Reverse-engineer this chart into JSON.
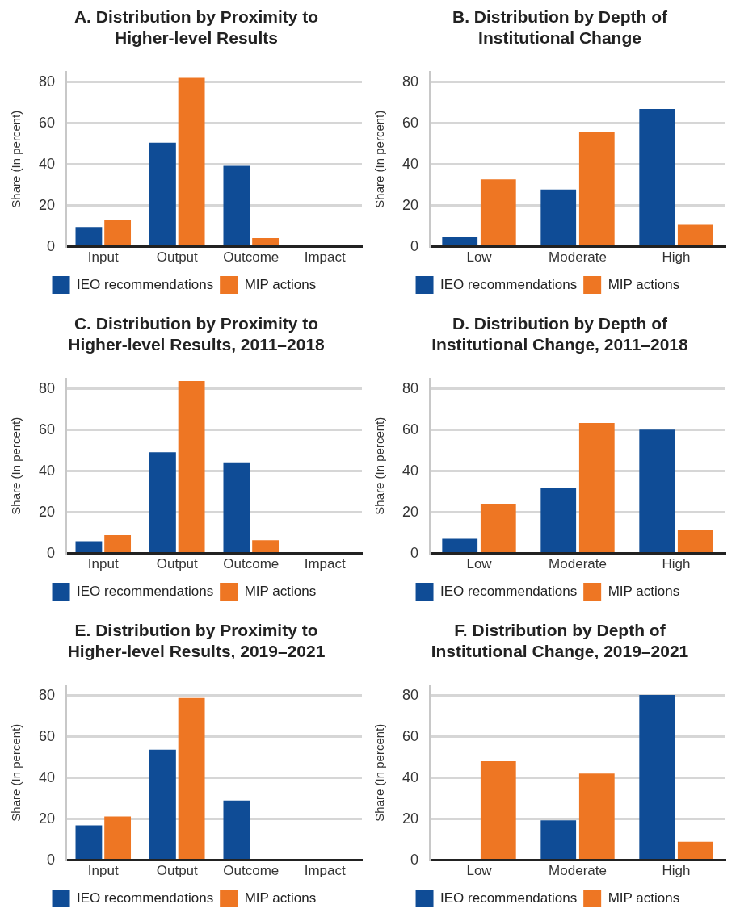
{
  "chart_data": [
    {
      "type": "bar",
      "title": "A. Distribution by Proximity to Higher-level Results",
      "ylabel": "Share (In percent)",
      "categories": [
        "Input",
        "Output",
        "Outcome",
        "Impact"
      ],
      "series": [
        {
          "name": "IEO recommendations",
          "color": "#0f4c96",
          "values": [
            9.5,
            50.5,
            39.2,
            0
          ]
        },
        {
          "name": "MIP actions",
          "color": "#ee7623",
          "values": [
            13.1,
            82,
            4.2,
            0
          ]
        }
      ],
      "ylim": [
        0,
        85
      ],
      "yticks": [
        0,
        20,
        40,
        60,
        80
      ],
      "grid": "y",
      "legend": "bottom"
    },
    {
      "type": "bar",
      "title": "B. Distribution by Depth of Institutional Change",
      "ylabel": "Share (In percent)",
      "categories": [
        "Low",
        "Moderate",
        "High"
      ],
      "series": [
        {
          "name": "IEO recommendations",
          "color": "#0f4c96",
          "values": [
            4.5,
            27.8,
            66.9
          ]
        },
        {
          "name": "MIP actions",
          "color": "#ee7623",
          "values": [
            32.7,
            55.9,
            10.6
          ]
        }
      ],
      "ylim": [
        0,
        85
      ],
      "yticks": [
        0,
        20,
        40,
        60,
        80
      ],
      "grid": "y",
      "legend": "bottom"
    },
    {
      "type": "bar",
      "title": "C. Distribution by Proximity to Higher-level Results, 2011–2018",
      "ylabel": "Share (In percent)",
      "categories": [
        "Input",
        "Output",
        "Outcome",
        "Impact"
      ],
      "series": [
        {
          "name": "IEO recommendations",
          "color": "#0f4c96",
          "values": [
            5.9,
            49.1,
            44.2,
            0
          ]
        },
        {
          "name": "MIP actions",
          "color": "#ee7623",
          "values": [
            8.9,
            83.7,
            6.4,
            0
          ]
        }
      ],
      "ylim": [
        0,
        85
      ],
      "yticks": [
        0,
        20,
        40,
        60,
        80
      ],
      "grid": "y",
      "legend": "bottom"
    },
    {
      "type": "bar",
      "title": "D. Distribution by Depth of Institutional Change, 2011–2018",
      "ylabel": "Share (In percent)",
      "categories": [
        "Low",
        "Moderate",
        "High"
      ],
      "series": [
        {
          "name": "IEO recommendations",
          "color": "#0f4c96",
          "values": [
            7.1,
            31.7,
            60.1
          ]
        },
        {
          "name": "MIP actions",
          "color": "#ee7623",
          "values": [
            24.2,
            63.4,
            11.4
          ]
        }
      ],
      "ylim": [
        0,
        85
      ],
      "yticks": [
        0,
        20,
        40,
        60,
        80
      ],
      "grid": "y",
      "legend": "bottom"
    },
    {
      "type": "bar",
      "title": "E. Distribution by Proximity to Higher-level Results, 2019–2021",
      "ylabel": "Share (In percent)",
      "categories": [
        "Input",
        "Output",
        "Outcome",
        "Impact"
      ],
      "series": [
        {
          "name": "IEO recommendations",
          "color": "#0f4c96",
          "values": [
            16.9,
            53.7,
            29.0,
            0
          ]
        },
        {
          "name": "MIP actions",
          "color": "#ee7623",
          "values": [
            21.2,
            78.7,
            0,
            0
          ]
        }
      ],
      "ylim": [
        0,
        85
      ],
      "yticks": [
        0,
        20,
        40,
        60,
        80
      ],
      "grid": "y",
      "legend": "bottom"
    },
    {
      "type": "bar",
      "title": "F. Distribution by Depth of Institutional Change, 2019–2021",
      "ylabel": "Share (In percent)",
      "categories": [
        "Low",
        "Moderate",
        "High"
      ],
      "series": [
        {
          "name": "IEO recommendations",
          "color": "#0f4c96",
          "values": [
            0,
            19.3,
            80.2
          ]
        },
        {
          "name": "MIP actions",
          "color": "#ee7623",
          "values": [
            48.1,
            42.1,
            9.0
          ]
        }
      ],
      "ylim": [
        0,
        85
      ],
      "yticks": [
        0,
        20,
        40,
        60,
        80
      ],
      "grid": "y",
      "legend": "bottom"
    }
  ]
}
